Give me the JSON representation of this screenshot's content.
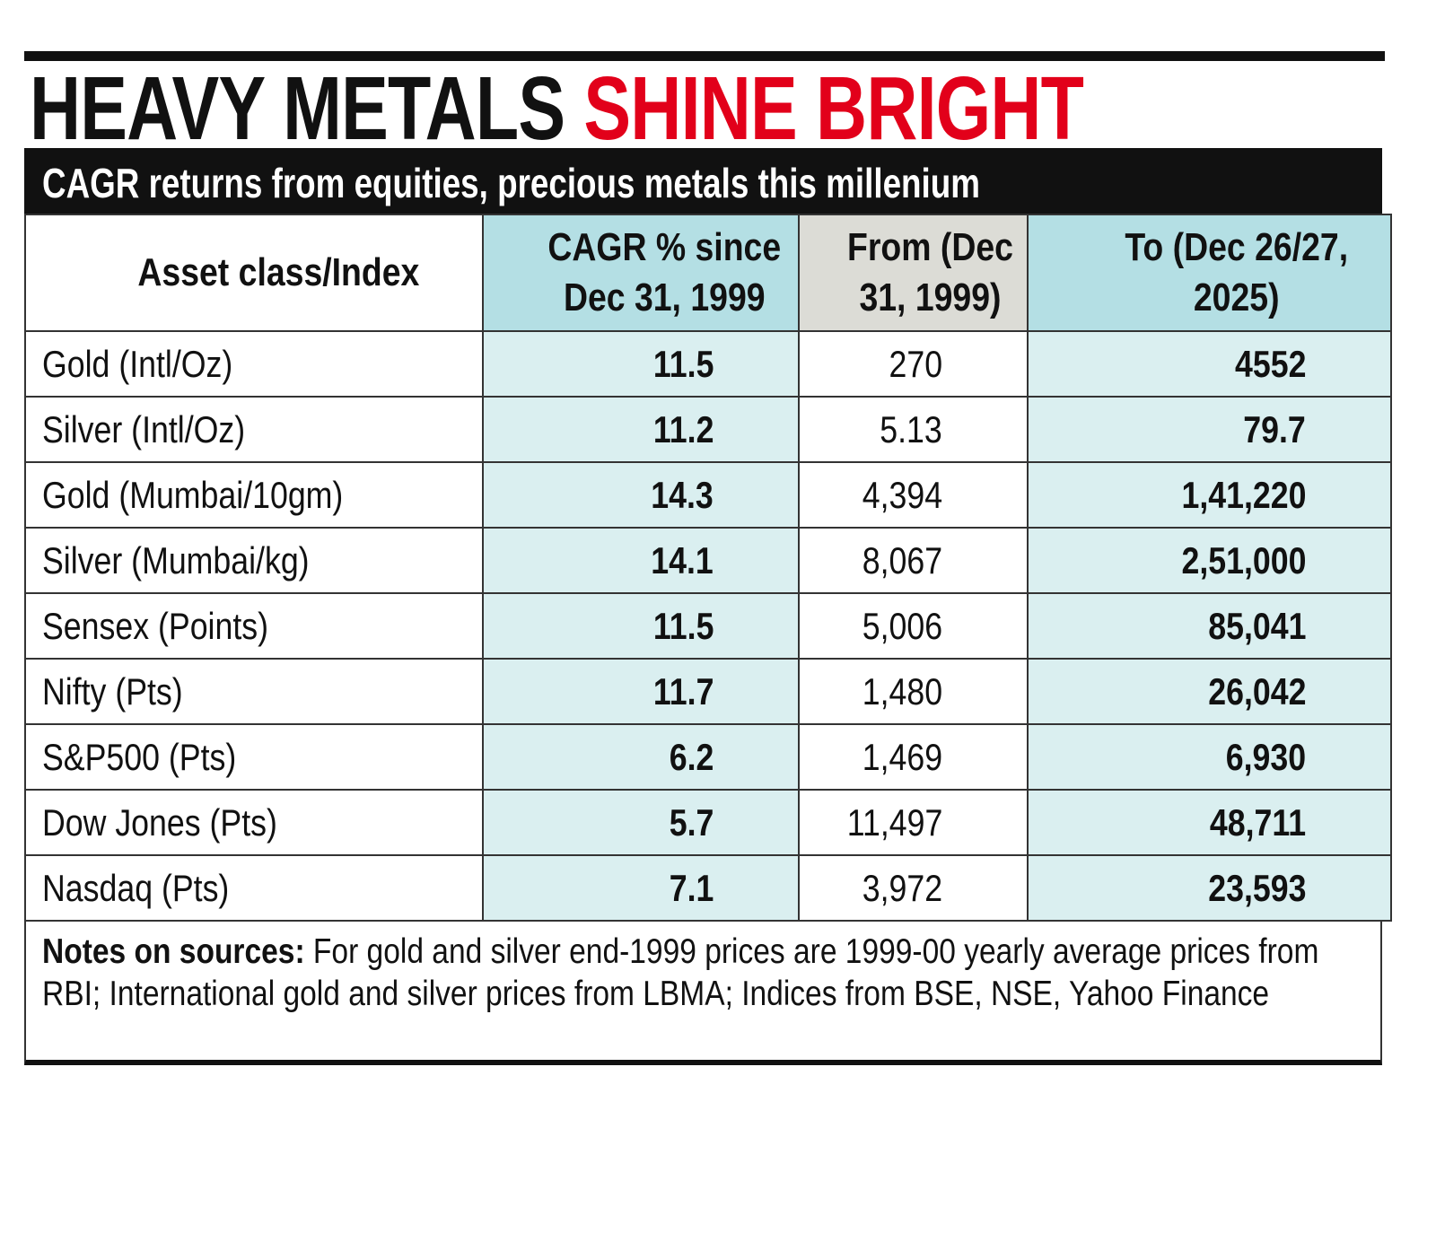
{
  "title": {
    "part1": "HEAVY METALS ",
    "part2": "SHINE BRIGHT",
    "accent_color": "#e2001a"
  },
  "subtitle": "CAGR returns from equities, precious metals this millenium",
  "chart_data": {
    "type": "table",
    "title": "HEAVY METALS SHINE BRIGHT",
    "subtitle": "CAGR returns from equities, precious metals this millenium",
    "columns": [
      "Asset class/Index",
      "CAGR % since Dec 31, 1999",
      "From (Dec 31, 1999)",
      "To (Dec 26/27, 2025)"
    ],
    "rows": [
      [
        "Gold (Intl/Oz)",
        "11.5",
        "270",
        "4552"
      ],
      [
        "Silver (Intl/Oz)",
        "11.2",
        "5.13",
        "79.7"
      ],
      [
        "Gold (Mumbai/10gm)",
        "14.3",
        "4,394",
        "1,41,220"
      ],
      [
        "Silver (Mumbai/kg)",
        "14.1",
        "8,067",
        "2,51,000"
      ],
      [
        "Sensex (Points)",
        "11.5",
        "5,006",
        "85,041"
      ],
      [
        "Nifty (Pts)",
        "11.7",
        "1,480",
        "26,042"
      ],
      [
        "S&P500 (Pts)",
        "6.2",
        "1,469",
        "6,930"
      ],
      [
        "Dow Jones (Pts)",
        "5.7",
        "11,497",
        "48,711"
      ],
      [
        "Nasdaq (Pts)",
        "7.1",
        "3,972",
        "23,593"
      ]
    ],
    "colors": {
      "highlight_columns": "#b4dfe4",
      "highlight_cells": "#daeff0",
      "from_header": "#dcdcd6"
    }
  },
  "notes": {
    "label": "Notes on sources:",
    "text": " For gold and silver end-1999 prices are 1999-00 yearly average prices from RBI; International gold and silver prices from LBMA; Indices from BSE, NSE, Yahoo Finance"
  }
}
